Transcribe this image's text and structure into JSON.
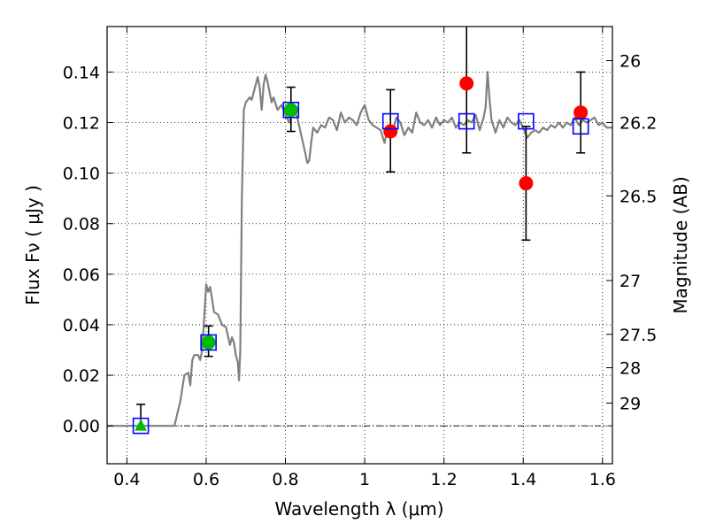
{
  "chart_data": {
    "type": "scatter",
    "title": "",
    "xlabel": "Wavelength  λ (μm)",
    "ylabel": "Flux  Fν  ( μJy )",
    "y2label": "Magnitude (AB)",
    "xlim": [
      0.35,
      1.625
    ],
    "ylim": [
      -0.015,
      0.158
    ],
    "grid": true,
    "x_ticks": [
      {
        "value": 0.4,
        "label": "0.4"
      },
      {
        "value": 0.6,
        "label": "0.6"
      },
      {
        "value": 0.8,
        "label": "0.8"
      },
      {
        "value": 1.0,
        "label": "1"
      },
      {
        "value": 1.2,
        "label": "1.2"
      },
      {
        "value": 1.4,
        "label": "1.4"
      },
      {
        "value": 1.6,
        "label": "1.6"
      }
    ],
    "y_ticks": [
      {
        "value": 0.0,
        "label": "0.00"
      },
      {
        "value": 0.02,
        "label": "0.02"
      },
      {
        "value": 0.04,
        "label": "0.04"
      },
      {
        "value": 0.06,
        "label": "0.06"
      },
      {
        "value": 0.08,
        "label": "0.08"
      },
      {
        "value": 0.1,
        "label": "0.10"
      },
      {
        "value": 0.12,
        "label": "0.12"
      },
      {
        "value": 0.14,
        "label": "0.14"
      }
    ],
    "y2_ticks": [
      {
        "flux": 0.1445,
        "label": "26"
      },
      {
        "flux": 0.12,
        "label": "26.2"
      },
      {
        "flux": 0.091,
        "label": "26.5"
      },
      {
        "flux": 0.0575,
        "label": "27"
      },
      {
        "flux": 0.0362,
        "label": "27.5"
      },
      {
        "flux": 0.023,
        "label": "28"
      },
      {
        "flux": 0.009,
        "label": "29"
      }
    ],
    "model_spectrum": {
      "color": "#808080",
      "x": [
        0.35,
        0.51,
        0.52,
        0.535,
        0.545,
        0.555,
        0.56,
        0.565,
        0.57,
        0.58,
        0.585,
        0.59,
        0.6,
        0.605,
        0.61,
        0.615,
        0.62,
        0.63,
        0.64,
        0.65,
        0.66,
        0.665,
        0.67,
        0.675,
        0.68,
        0.683,
        0.686,
        0.69,
        0.695,
        0.7,
        0.71,
        0.715,
        0.72,
        0.73,
        0.735,
        0.74,
        0.745,
        0.75,
        0.755,
        0.76,
        0.765,
        0.77,
        0.78,
        0.79,
        0.8,
        0.81,
        0.82,
        0.83,
        0.84,
        0.85,
        0.855,
        0.86,
        0.865,
        0.87,
        0.88,
        0.89,
        0.9,
        0.91,
        0.92,
        0.93,
        0.94,
        0.95,
        0.96,
        0.97,
        0.98,
        0.99,
        1.0,
        1.01,
        1.02,
        1.03,
        1.04,
        1.05,
        1.06,
        1.07,
        1.08,
        1.09,
        1.1,
        1.11,
        1.12,
        1.13,
        1.14,
        1.15,
        1.16,
        1.17,
        1.18,
        1.19,
        1.2,
        1.21,
        1.22,
        1.23,
        1.24,
        1.25,
        1.26,
        1.27,
        1.28,
        1.29,
        1.3,
        1.305,
        1.31,
        1.315,
        1.32,
        1.33,
        1.34,
        1.35,
        1.36,
        1.37,
        1.38,
        1.39,
        1.4,
        1.41,
        1.42,
        1.43,
        1.44,
        1.45,
        1.46,
        1.47,
        1.48,
        1.49,
        1.5,
        1.51,
        1.52,
        1.53,
        1.54,
        1.55,
        1.56,
        1.57,
        1.58,
        1.59,
        1.6,
        1.61,
        1.625
      ],
      "y": [
        0.0,
        0.0,
        0.0,
        0.01,
        0.02,
        0.021,
        0.016,
        0.026,
        0.028,
        0.028,
        0.026,
        0.03,
        0.056,
        0.053,
        0.055,
        0.05,
        0.045,
        0.044,
        0.04,
        0.039,
        0.032,
        0.035,
        0.033,
        0.028,
        0.025,
        0.018,
        0.03,
        0.09,
        0.125,
        0.128,
        0.13,
        0.129,
        0.132,
        0.138,
        0.134,
        0.125,
        0.135,
        0.139,
        0.136,
        0.132,
        0.128,
        0.13,
        0.125,
        0.127,
        0.123,
        0.12,
        0.126,
        0.122,
        0.115,
        0.108,
        0.104,
        0.105,
        0.112,
        0.118,
        0.116,
        0.119,
        0.118,
        0.122,
        0.121,
        0.117,
        0.124,
        0.12,
        0.122,
        0.121,
        0.119,
        0.124,
        0.127,
        0.121,
        0.119,
        0.118,
        0.117,
        0.112,
        0.119,
        0.116,
        0.122,
        0.12,
        0.115,
        0.118,
        0.116,
        0.124,
        0.12,
        0.119,
        0.121,
        0.118,
        0.122,
        0.119,
        0.121,
        0.12,
        0.122,
        0.118,
        0.12,
        0.119,
        0.121,
        0.12,
        0.123,
        0.117,
        0.122,
        0.126,
        0.14,
        0.129,
        0.121,
        0.116,
        0.121,
        0.118,
        0.122,
        0.12,
        0.119,
        0.121,
        0.118,
        0.114,
        0.116,
        0.117,
        0.116,
        0.118,
        0.117,
        0.119,
        0.118,
        0.12,
        0.118,
        0.12,
        0.119,
        0.122,
        0.119,
        0.121,
        0.12,
        0.121,
        0.122,
        0.119,
        0.12,
        0.118,
        0.118
      ]
    },
    "series": [
      {
        "marker": "circle",
        "color": "#ff0000",
        "points": [
          {
            "x": 1.065,
            "y": 0.1165,
            "err_lo": 0.016,
            "err_hi": 0.0165
          },
          {
            "x": 1.257,
            "y": 0.1355,
            "err_lo": 0.0275,
            "err_hi": 0.025
          },
          {
            "x": 1.407,
            "y": 0.096,
            "err_lo": 0.0225,
            "err_hi": 0.0225
          },
          {
            "x": 1.545,
            "y": 0.124,
            "err_lo": 0.016,
            "err_hi": 0.016
          }
        ]
      },
      {
        "marker": "circle",
        "color": "#00bb00",
        "points": [
          {
            "x": 0.606,
            "y": 0.033,
            "err_lo": 0.0055,
            "err_hi": 0.0065
          },
          {
            "x": 0.814,
            "y": 0.125,
            "err_lo": 0.0085,
            "err_hi": 0.009
          }
        ]
      },
      {
        "marker": "triangle",
        "color": "#00bb00",
        "points": [
          {
            "x": 0.435,
            "y": 0.0,
            "err_lo": 0.0,
            "err_hi": 0.0085
          }
        ]
      },
      {
        "marker": "square-open",
        "color": "#0000ff",
        "points": [
          {
            "x": 0.435,
            "y": 0.0
          },
          {
            "x": 0.606,
            "y": 0.033
          },
          {
            "x": 0.814,
            "y": 0.125
          },
          {
            "x": 1.065,
            "y": 0.1205
          },
          {
            "x": 1.257,
            "y": 0.1205
          },
          {
            "x": 1.407,
            "y": 0.1205
          },
          {
            "x": 1.545,
            "y": 0.1185
          }
        ]
      }
    ]
  }
}
